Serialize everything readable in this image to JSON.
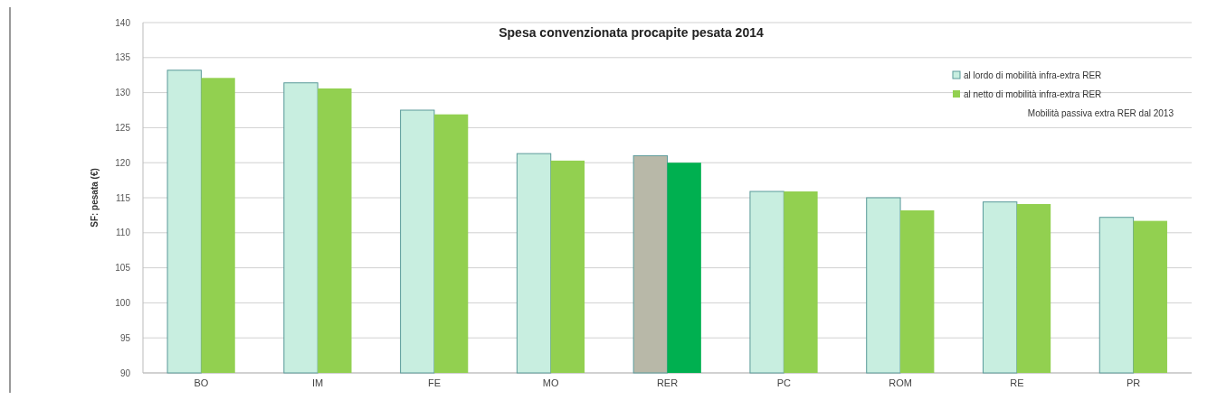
{
  "chart_data": {
    "type": "bar",
    "title": "Spesa convenzionata procapite pesata 2014",
    "ylabel": "SF: pesata (€)",
    "categories": [
      "BO",
      "IM",
      "FE",
      "MO",
      "RER",
      "PC",
      "ROM",
      "RE",
      "PR"
    ],
    "series": [
      {
        "name": "al lordo di mobilità infra-extra RER",
        "color": "#c8eee0",
        "colors": [
          "#c8eee0",
          "#c8eee0",
          "#c8eee0",
          "#c8eee0",
          "#b8b8a8",
          "#c8eee0",
          "#c8eee0",
          "#c8eee0",
          "#c8eee0"
        ],
        "values": [
          133.2,
          131.4,
          127.5,
          121.3,
          121.0,
          115.9,
          115.0,
          114.4,
          112.2
        ]
      },
      {
        "name": "al netto di mobilità infra-extra RER",
        "color": "#92d050",
        "colors": [
          "#92d050",
          "#92d050",
          "#92d050",
          "#92d050",
          "#00b050",
          "#92d050",
          "#92d050",
          "#92d050",
          "#92d050"
        ],
        "values": [
          132.1,
          130.6,
          126.9,
          120.3,
          120.0,
          115.9,
          113.2,
          114.1,
          111.7
        ]
      }
    ],
    "annotations": [
      "Mobilità passiva extra RER dal 2013"
    ],
    "ylim": [
      90,
      140
    ],
    "yticks": [
      90,
      95,
      100,
      105,
      110,
      115,
      120,
      125,
      130,
      135,
      140
    ],
    "grid": "y",
    "legend": "top right"
  }
}
